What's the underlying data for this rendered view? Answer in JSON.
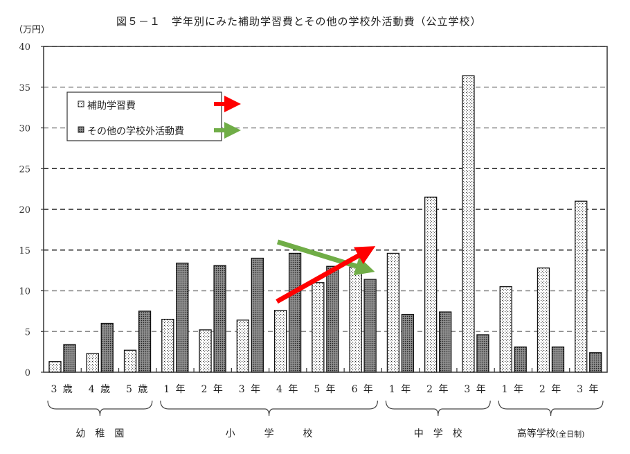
{
  "title": "図５－１　学年別にみた補助学習費とその他の学校外活動費（公立学校）",
  "unit_label": "（万円）",
  "legend": {
    "items": [
      {
        "label": "補助学習費",
        "pattern": "light-dots",
        "arrow_color": "#ff0000"
      },
      {
        "label": "その他の学校外活動費",
        "pattern": "dark-dots",
        "arrow_color": "#70ad47"
      }
    ]
  },
  "annotations": {
    "arrows": [
      {
        "color": "#ff0000",
        "meaning": "補助学習費 increasing trend (小4→小6)"
      },
      {
        "color": "#70ad47",
        "meaning": "その他の学校外活動費 decreasing trend (小4→小6)"
      }
    ]
  },
  "groups": [
    {
      "label": "幼　稚　園",
      "categories": [
        0,
        2
      ]
    },
    {
      "label": "小　　　学　　　校",
      "categories": [
        3,
        8
      ]
    },
    {
      "label": "中　学　校",
      "categories": [
        9,
        11
      ]
    },
    {
      "label": "高等学校",
      "suffix": "(全日制)",
      "categories": [
        12,
        14
      ]
    }
  ],
  "chart_data": {
    "type": "bar",
    "title": "図５－１　学年別にみた補助学習費とその他の学校外活動費（公立学校）",
    "xlabel": "",
    "ylabel": "（万円）",
    "ylim": [
      0,
      40
    ],
    "yticks": [
      0,
      5,
      10,
      15,
      20,
      25,
      30,
      35,
      40
    ],
    "grid": true,
    "legend_position": "upper-left",
    "categories": [
      "3歳",
      "4歳",
      "5歳",
      "1年",
      "2年",
      "3年",
      "4年",
      "5年",
      "6年",
      "1年",
      "2年",
      "3年",
      "1年",
      "2年",
      "3年"
    ],
    "category_groups": [
      "幼稚園",
      "幼稚園",
      "幼稚園",
      "小学校",
      "小学校",
      "小学校",
      "小学校",
      "小学校",
      "小学校",
      "中学校",
      "中学校",
      "中学校",
      "高等学校(全日制)",
      "高等学校(全日制)",
      "高等学校(全日制)"
    ],
    "series": [
      {
        "name": "補助学習費",
        "values": [
          1.3,
          2.3,
          2.7,
          6.5,
          5.2,
          6.4,
          7.6,
          11.0,
          12.9,
          14.6,
          21.5,
          36.4,
          10.5,
          12.8,
          21.0
        ]
      },
      {
        "name": "その他の学校外活動費",
        "values": [
          3.4,
          6.0,
          7.5,
          13.4,
          13.1,
          14.0,
          14.6,
          13.0,
          11.4,
          7.1,
          7.4,
          4.6,
          3.1,
          3.1,
          2.4
        ]
      }
    ]
  }
}
